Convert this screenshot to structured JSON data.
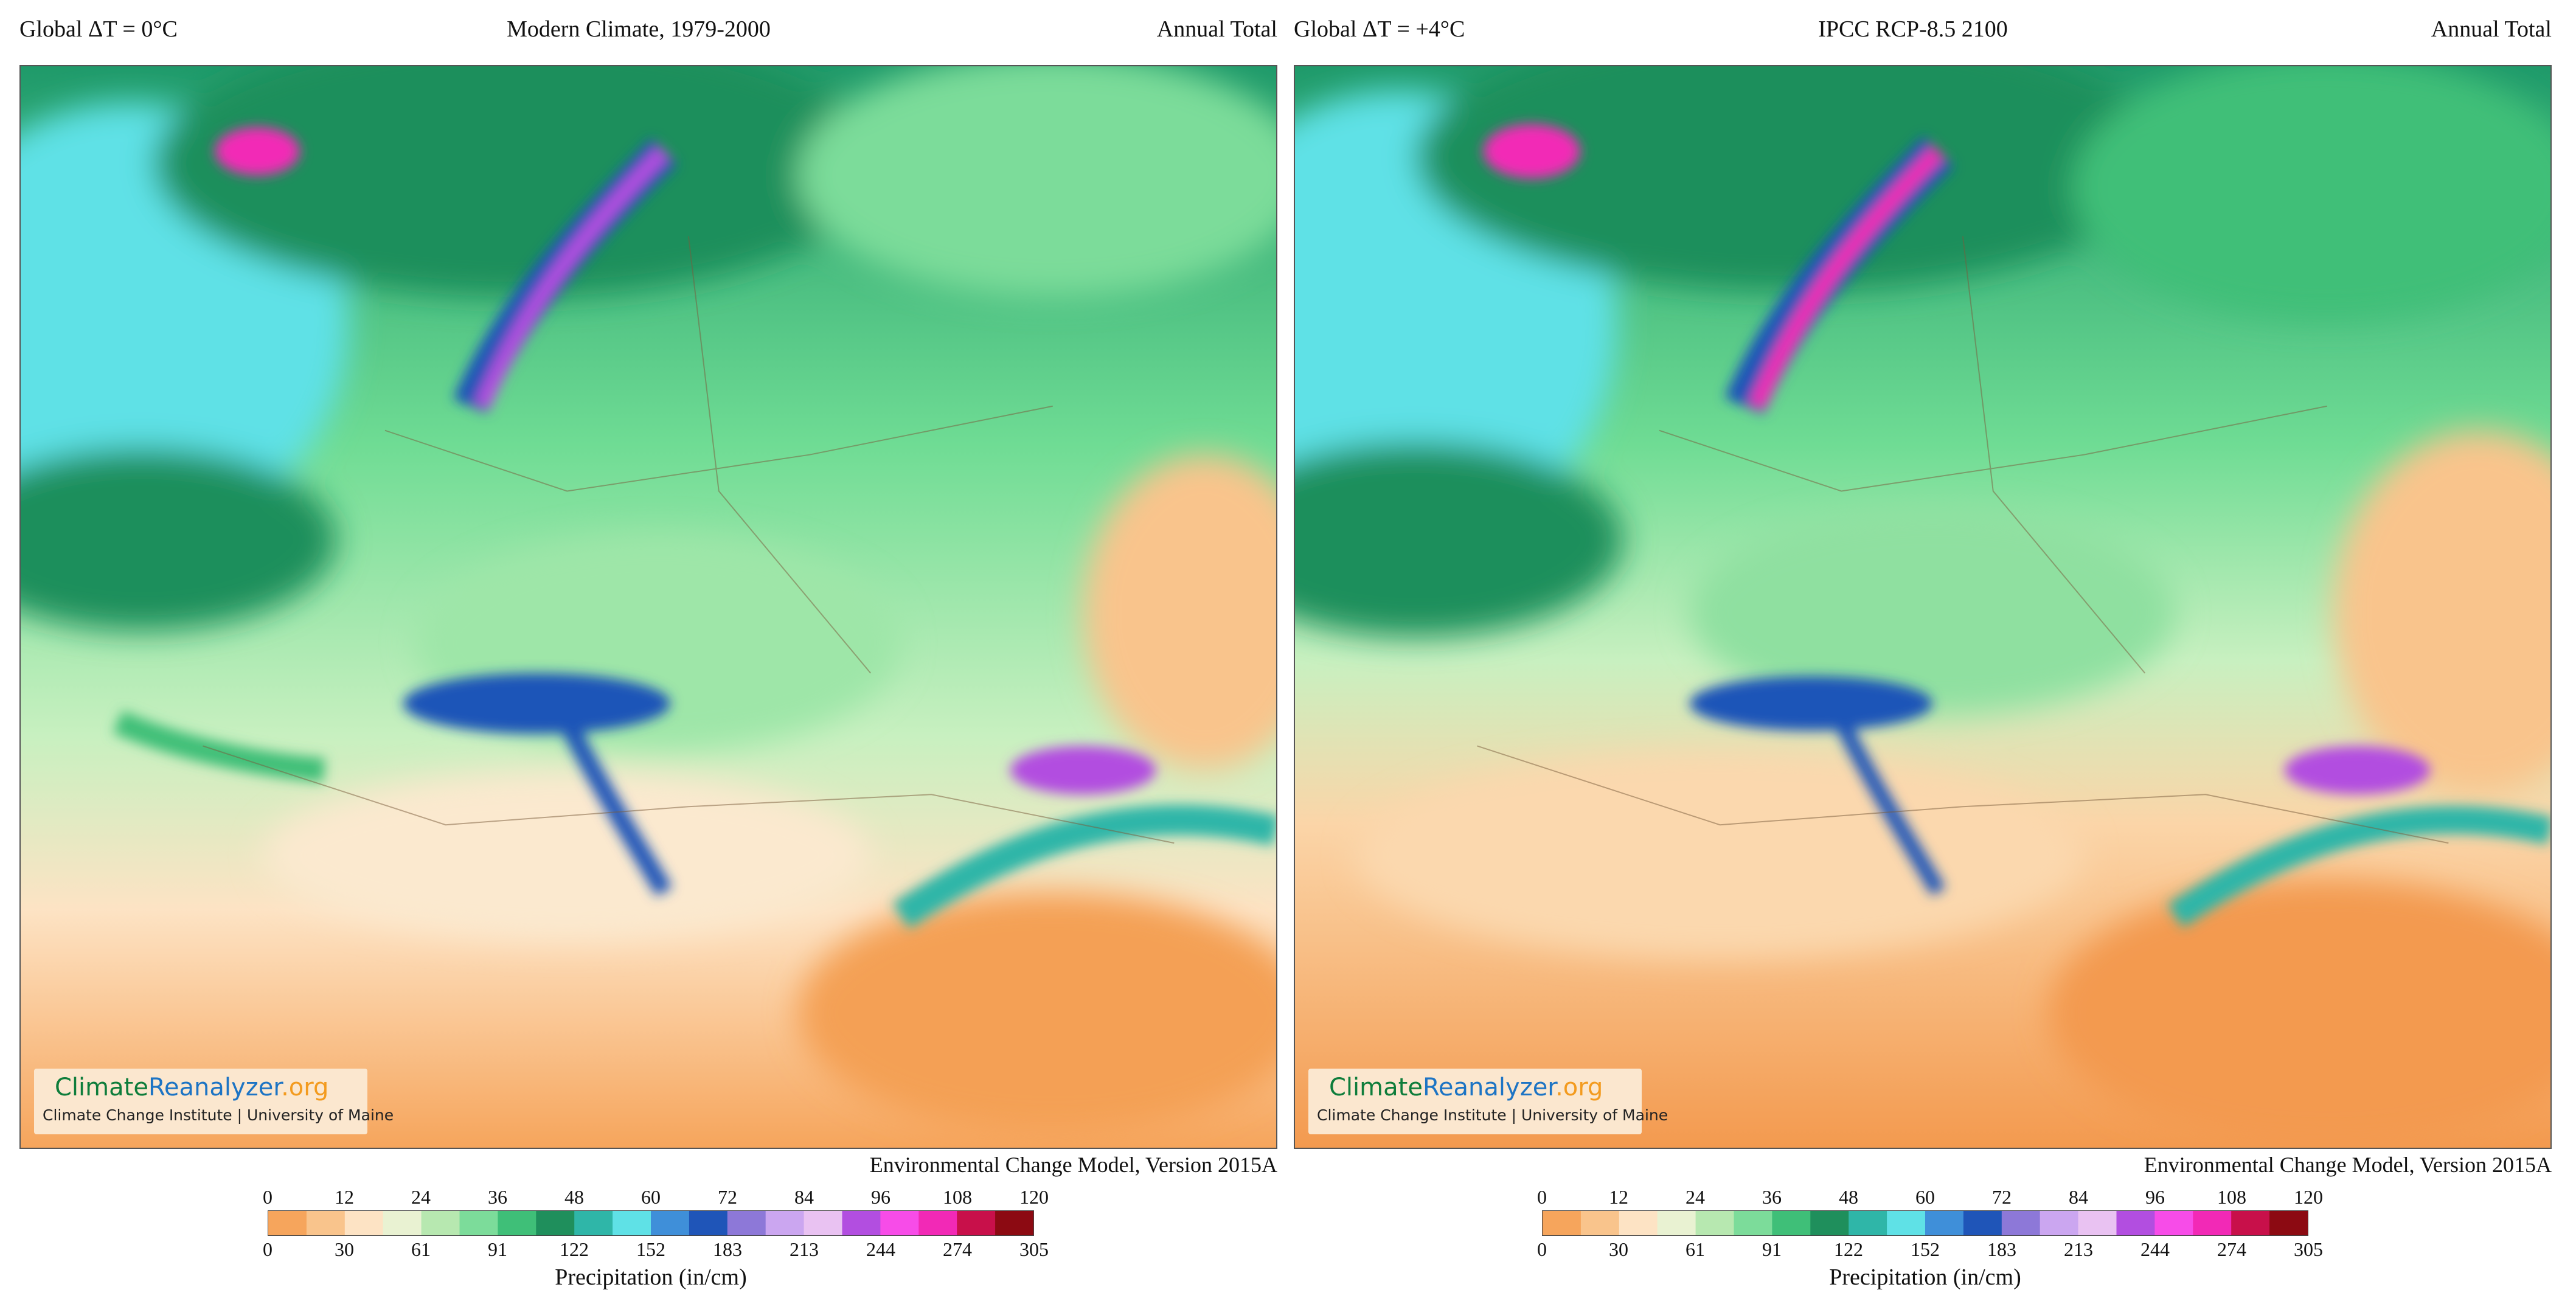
{
  "panels": [
    {
      "left_title": "Global ΔT = 0°C",
      "center_title": "Modern Climate, 1979-2000",
      "right_title": "Annual Total",
      "logo_brand_1": "Climate",
      "logo_brand_2": "Reanalyzer",
      "logo_brand_3": ".org",
      "logo_sub": "Climate Change Institute | University of Maine",
      "credit": "Environmental Change Model, Version 2015A",
      "legend_top_ticks": [
        "0",
        "12",
        "24",
        "36",
        "48",
        "60",
        "72",
        "84",
        "96",
        "108",
        "120"
      ],
      "legend_bottom_ticks": [
        "0",
        "30",
        "61",
        "91",
        "122",
        "152",
        "183",
        "213",
        "244",
        "274",
        "305"
      ],
      "legend_title": "Precipitation (in/cm)",
      "scenario": "modern"
    },
    {
      "left_title": "Global ΔT = +4°C",
      "center_title": "IPCC RCP-8.5 2100",
      "right_title": "Annual Total",
      "logo_brand_1": "Climate",
      "logo_brand_2": "Reanalyzer",
      "logo_brand_3": ".org",
      "logo_sub": "Climate Change Institute | University of Maine",
      "credit": "Environmental Change Model, Version 2015A",
      "legend_top_ticks": [
        "0",
        "12",
        "24",
        "36",
        "48",
        "60",
        "72",
        "84",
        "96",
        "108",
        "120"
      ],
      "legend_bottom_ticks": [
        "0",
        "30",
        "61",
        "91",
        "122",
        "152",
        "183",
        "213",
        "244",
        "274",
        "305"
      ],
      "legend_title": "Precipitation (in/cm)",
      "scenario": "rcp85"
    }
  ],
  "colorscale": [
    "#f6a55c",
    "#f9c48c",
    "#fde3c4",
    "#e9f2d2",
    "#b7e8b0",
    "#7cdc9a",
    "#3fbf78",
    "#1f8f5c",
    "#2fb6a8",
    "#5fe1e6",
    "#3f8fd9",
    "#1f55b8",
    "#8d78d8",
    "#cba6f0",
    "#e9c2f2",
    "#b24ee0",
    "#f74ce8",
    "#f229b6",
    "#c8104a",
    "#8c0a12"
  ]
}
